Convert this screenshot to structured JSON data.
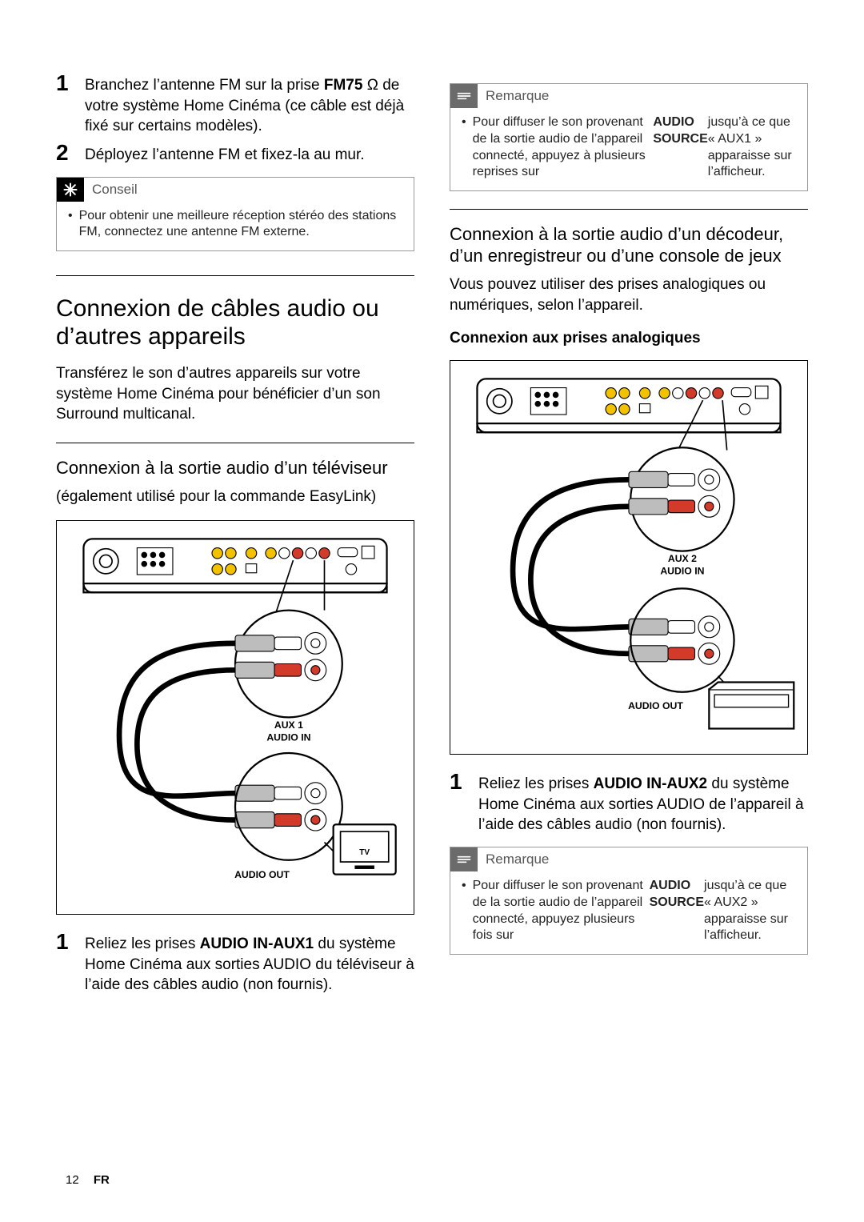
{
  "footer": {
    "page": "12",
    "lang": "FR"
  },
  "colors": {
    "rca_red": "#d23a2a",
    "rca_white": "#ffffff",
    "body_gray": "#bdbdbd",
    "outline": "#000000",
    "note_gray": "#6b6b6b"
  },
  "left": {
    "steps_top": [
      {
        "num": "1",
        "html": "Branchez l’antenne FM sur la prise <b>FM75</b> Ω de votre système Home Cinéma (ce câble est déjà fixé sur certains modèles)."
      },
      {
        "num": "2",
        "html": "Déployez l’antenne FM et fixez-la au mur."
      }
    ],
    "tip": {
      "title": "Conseil",
      "items": [
        "Pour obtenir une meilleure réception stéréo des stations FM, connectez une antenne FM externe."
      ]
    },
    "h1": "Connexion de câbles audio ou d’autres appareils",
    "p1": "Transférez le son d’autres appareils sur votre système Home Cinéma pour bénéficier d’un son Surround multicanal.",
    "h2": "Connexion à la sortie audio d’un téléviseur",
    "p2": "(également utilisé pour la commande EasyLink)",
    "diagram1": {
      "aux_label": "AUX 1",
      "audio_in": "AUDIO IN",
      "audio_out": "AUDIO OUT",
      "device_label": "TV"
    },
    "steps_bottom": [
      {
        "num": "1",
        "html": "Reliez les prises <b>AUDIO IN-AUX1</b> du système Home Cinéma aux sorties AUDIO du téléviseur à l’aide des câbles audio (non fournis)."
      }
    ]
  },
  "right": {
    "note1": {
      "title": "Remarque",
      "items": [
        "Pour diffuser le son provenant de la sortie audio de l’appareil connecté, appuyez à plusieurs reprises sur <b>AUDIO SOURCE</b> jusqu’à ce que « AUX1 » apparaisse sur l’afficheur."
      ]
    },
    "h2": "Connexion à la sortie audio d’un décodeur, d’un enregistreur ou d’une console de jeux",
    "p1": "Vous pouvez utiliser des prises analogiques ou numériques, selon l’appareil.",
    "h3": "Connexion aux prises analogiques",
    "diagram2": {
      "aux_label": "AUX 2",
      "audio_in": "AUDIO IN",
      "audio_out": "AUDIO OUT"
    },
    "steps": [
      {
        "num": "1",
        "html": "Reliez les prises <b>AUDIO IN-AUX2</b> du système Home Cinéma aux sorties AUDIO de l’appareil à l’aide des câbles audio (non fournis)."
      }
    ],
    "note2": {
      "title": "Remarque",
      "items": [
        "Pour diffuser le son provenant de la sortie audio de l’appareil connecté, appuyez plusieurs fois sur <b>AUDIO SOURCE</b> jusqu’à ce que « AUX2 » apparaisse sur l’afficheur."
      ]
    }
  }
}
